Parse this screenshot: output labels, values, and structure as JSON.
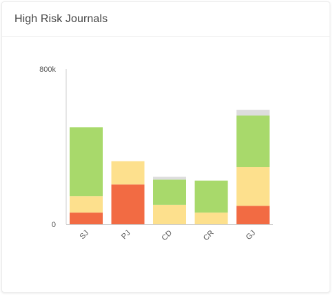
{
  "header": {
    "title": "High Risk Journals"
  },
  "colors": {
    "high": "#f26b43",
    "medium": "#fde08d",
    "low": "#a8d96b",
    "other": "#dddddd",
    "axis": "#cccccc",
    "tick_text": "#555555"
  },
  "chart_data": {
    "type": "bar",
    "stacked": true,
    "title": "",
    "xlabel": "",
    "ylabel": "",
    "categories": [
      "SJ",
      "PJ",
      "CD",
      "CR",
      "GJ"
    ],
    "series": [
      {
        "color_key": "high",
        "values": [
          60000,
          205000,
          0,
          0,
          95000
        ]
      },
      {
        "color_key": "medium",
        "values": [
          85000,
          120000,
          100000,
          60000,
          200000
        ]
      },
      {
        "color_key": "low",
        "values": [
          355000,
          0,
          130000,
          165000,
          265000
        ]
      },
      {
        "color_key": "other",
        "values": [
          0,
          0,
          15000,
          0,
          30000
        ]
      }
    ],
    "ylim": [
      0,
      800000
    ],
    "yticks": [
      {
        "value": 0,
        "label": "0"
      },
      {
        "value": 800000,
        "label": "800k"
      }
    ],
    "grid": false,
    "legend": "none"
  }
}
